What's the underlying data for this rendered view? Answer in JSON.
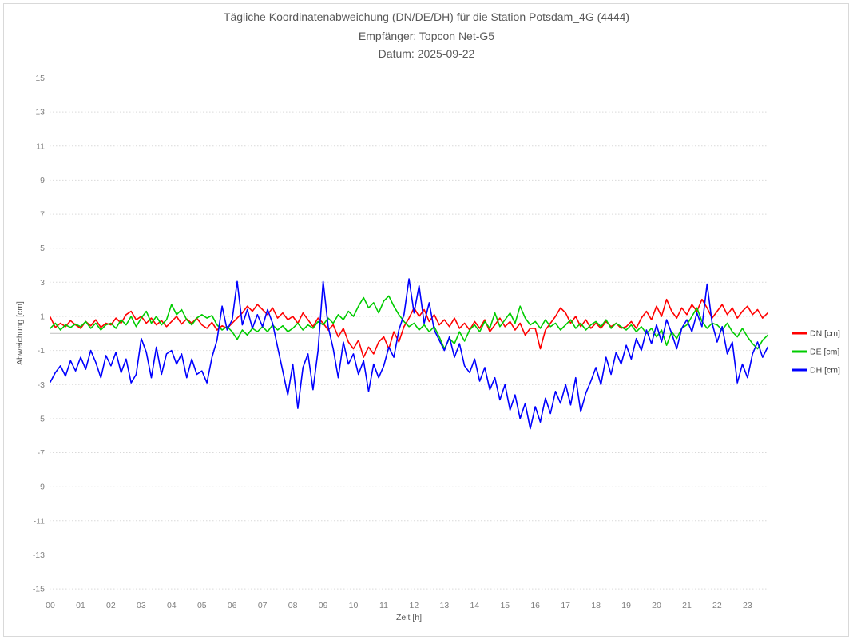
{
  "chart_data": {
    "type": "line",
    "title": "Tägliche Koordinatenabweichung (DN/DE/DH) für die Station Potsdam_4G (4444)",
    "subtitle_receiver": "Empfänger: Topcon Net-G5",
    "subtitle_date": "Datum: 2025-09-22",
    "xlabel": "Zeit [h]",
    "ylabel": "Abweichung [cm]",
    "ylim": [
      -15,
      15
    ],
    "y_tick_values": [
      15,
      13,
      11,
      9,
      7,
      5,
      3,
      1,
      -1,
      -3,
      -5,
      -7,
      -9,
      -11,
      -13,
      -15
    ],
    "x_tick_labels": [
      "00",
      "01",
      "02",
      "03",
      "04",
      "05",
      "06",
      "07",
      "08",
      "09",
      "10",
      "11",
      "12",
      "13",
      "14",
      "15",
      "16",
      "17",
      "18",
      "19",
      "20",
      "21",
      "22",
      "23"
    ],
    "x_start_hour": 0,
    "x_step_minutes": 10,
    "grid": "horizontal dotted lines at odd values, solid light line at 0, no vertical gridlines",
    "legend_position": "right",
    "colors": {
      "grid": "#d9d9d9",
      "zero_line": "#bfbfbf",
      "title_text": "#595959",
      "tick_text": "#7f7f7f",
      "legend_text": "#404040",
      "chart_border": "#d9d9d9"
    },
    "series": [
      {
        "name": "DN [cm]",
        "color": "#ff0000",
        "values": [
          0.95,
          0.35,
          0.6,
          0.4,
          0.75,
          0.5,
          0.3,
          0.7,
          0.45,
          0.8,
          0.35,
          0.6,
          0.5,
          0.9,
          0.6,
          1.1,
          1.3,
          0.8,
          1.0,
          0.6,
          0.9,
          0.5,
          0.75,
          0.4,
          0.7,
          1.0,
          0.55,
          0.85,
          0.6,
          0.9,
          0.5,
          0.3,
          0.65,
          0.2,
          0.45,
          0.3,
          0.6,
          0.9,
          1.2,
          1.6,
          1.3,
          1.7,
          1.4,
          1.1,
          1.5,
          0.9,
          1.2,
          0.8,
          1.0,
          0.6,
          1.2,
          0.8,
          0.4,
          0.9,
          0.6,
          0.2,
          0.5,
          -0.2,
          0.3,
          -0.5,
          -0.9,
          -0.4,
          -1.4,
          -0.8,
          -1.2,
          -0.5,
          -0.2,
          -0.9,
          0.1,
          -0.5,
          0.4,
          0.9,
          1.5,
          1.0,
          1.4,
          0.7,
          1.1,
          0.5,
          0.8,
          0.4,
          0.9,
          0.3,
          0.6,
          0.2,
          0.7,
          0.3,
          0.8,
          0.1,
          0.5,
          0.9,
          0.4,
          0.7,
          0.2,
          0.6,
          -0.1,
          0.3,
          0.3,
          -0.9,
          0.2,
          0.6,
          1.0,
          1.5,
          1.2,
          0.6,
          1.0,
          0.4,
          0.8,
          0.3,
          0.6,
          0.3,
          0.7,
          0.4,
          0.6,
          0.3,
          0.4,
          0.7,
          0.3,
          0.9,
          1.3,
          0.8,
          1.6,
          1.0,
          2.0,
          1.3,
          0.9,
          1.5,
          1.1,
          1.7,
          1.3,
          2.0,
          1.5,
          0.9,
          1.3,
          1.7,
          1.1,
          1.5,
          0.9,
          1.3,
          1.6,
          1.1,
          1.4,
          0.9,
          1.2
        ]
      },
      {
        "name": "DE [cm]",
        "color": "#00cc00",
        "values": [
          0.3,
          0.6,
          0.2,
          0.5,
          0.35,
          0.55,
          0.4,
          0.7,
          0.3,
          0.6,
          0.2,
          0.5,
          0.6,
          0.3,
          0.8,
          0.5,
          1.0,
          0.4,
          0.9,
          1.3,
          0.6,
          1.0,
          0.5,
          0.8,
          1.7,
          1.1,
          1.4,
          0.8,
          0.5,
          0.9,
          1.1,
          0.9,
          1.05,
          0.5,
          0.2,
          0.4,
          0.1,
          -0.35,
          0.2,
          -0.1,
          0.3,
          0.1,
          0.4,
          0.1,
          0.5,
          0.2,
          0.45,
          0.1,
          0.3,
          0.6,
          0.2,
          0.5,
          0.3,
          0.7,
          0.5,
          0.9,
          0.6,
          1.1,
          0.8,
          1.3,
          1.0,
          1.6,
          2.1,
          1.5,
          1.8,
          1.2,
          1.9,
          2.2,
          1.6,
          1.1,
          0.7,
          0.4,
          0.6,
          0.2,
          0.5,
          0.1,
          0.4,
          -0.2,
          -0.9,
          -0.3,
          -0.6,
          0.1,
          -0.45,
          0.2,
          0.5,
          0.1,
          0.7,
          0.3,
          1.2,
          0.4,
          0.8,
          1.2,
          0.6,
          1.6,
          0.9,
          0.5,
          0.7,
          0.3,
          0.8,
          0.4,
          0.6,
          0.2,
          0.5,
          0.8,
          0.3,
          0.6,
          0.2,
          0.5,
          0.7,
          0.4,
          0.8,
          0.3,
          0.6,
          0.4,
          0.2,
          0.5,
          0.1,
          0.4,
          0.0,
          0.3,
          -0.2,
          0.2,
          -0.7,
          0.1,
          -0.3,
          0.3,
          0.5,
          1.0,
          1.5,
          0.7,
          0.3,
          0.6,
          0.5,
          0.2,
          0.6,
          0.1,
          -0.2,
          0.3,
          -0.2,
          -0.6,
          -0.9,
          -0.4,
          -0.1
        ]
      },
      {
        "name": "DH [cm]",
        "color": "#0000ff",
        "values": [
          -2.85,
          -2.3,
          -1.9,
          -2.5,
          -1.6,
          -2.2,
          -1.4,
          -2.1,
          -1.0,
          -1.7,
          -2.6,
          -1.3,
          -1.9,
          -1.1,
          -2.3,
          -1.5,
          -2.9,
          -2.4,
          -0.3,
          -1.1,
          -2.6,
          -0.8,
          -2.4,
          -1.2,
          -1.0,
          -1.8,
          -1.2,
          -2.6,
          -1.5,
          -2.4,
          -2.2,
          -2.9,
          -1.4,
          -0.4,
          1.6,
          0.2,
          0.8,
          3.05,
          0.5,
          1.4,
          0.3,
          1.1,
          0.4,
          1.4,
          0.6,
          -0.8,
          -2.2,
          -3.6,
          -1.8,
          -4.4,
          -2.0,
          -1.2,
          -3.3,
          -1.0,
          3.05,
          0.4,
          -0.9,
          -2.6,
          -0.5,
          -1.8,
          -1.2,
          -2.4,
          -1.6,
          -3.4,
          -1.8,
          -2.6,
          -1.9,
          -0.8,
          -1.4,
          0.2,
          1.1,
          3.2,
          1.2,
          2.8,
          0.6,
          1.8,
          0.2,
          -0.4,
          -1.0,
          -0.2,
          -1.4,
          -0.6,
          -1.9,
          -2.3,
          -1.5,
          -2.8,
          -2.0,
          -3.3,
          -2.6,
          -3.9,
          -3.0,
          -4.5,
          -3.6,
          -5.0,
          -4.1,
          -5.6,
          -4.3,
          -5.2,
          -3.8,
          -4.7,
          -3.4,
          -4.1,
          -3.0,
          -4.2,
          -2.6,
          -4.6,
          -3.5,
          -2.8,
          -2.0,
          -3.0,
          -1.4,
          -2.4,
          -1.1,
          -1.8,
          -0.7,
          -1.5,
          -0.3,
          -1.0,
          0.2,
          -0.6,
          0.5,
          -0.5,
          0.8,
          0.0,
          -0.9,
          0.3,
          0.8,
          0.1,
          1.2,
          0.4,
          2.9,
          0.6,
          -0.5,
          0.4,
          -1.2,
          -0.5,
          -2.9,
          -1.8,
          -2.6,
          -1.2,
          -0.5,
          -1.4,
          -0.8
        ]
      }
    ]
  }
}
